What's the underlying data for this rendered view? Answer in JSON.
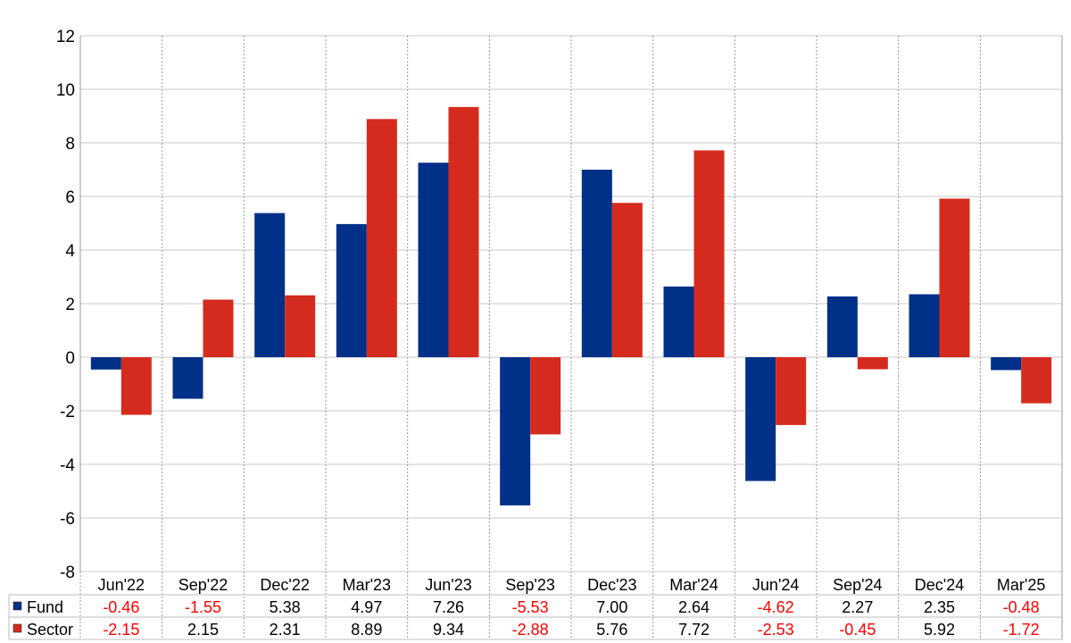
{
  "chart_data": {
    "type": "bar",
    "categories": [
      "Jun'22",
      "Sep'22",
      "Dec'22",
      "Mar'23",
      "Jun'23",
      "Sep'23",
      "Dec'23",
      "Mar'24",
      "Jun'24",
      "Sep'24",
      "Dec'24",
      "Mar'25"
    ],
    "series": [
      {
        "name": "Fund",
        "color": "#003087",
        "values": [
          -0.46,
          -1.55,
          5.38,
          4.97,
          7.26,
          -5.53,
          7.0,
          2.64,
          -4.62,
          2.27,
          2.35,
          -0.48
        ]
      },
      {
        "name": "Sector",
        "color": "#d52b1e",
        "values": [
          -2.15,
          2.15,
          2.31,
          8.89,
          9.34,
          -2.88,
          5.76,
          7.72,
          -2.53,
          -0.45,
          5.92,
          -1.72
        ]
      }
    ],
    "ylim": [
      -8,
      12
    ],
    "yticks": [
      -8,
      -6,
      -4,
      -2,
      0,
      2,
      4,
      6,
      8,
      10,
      12
    ],
    "grid": true,
    "legend": "table-below",
    "negative_value_color": "#ff0000",
    "positive_value_color": "#000000"
  }
}
